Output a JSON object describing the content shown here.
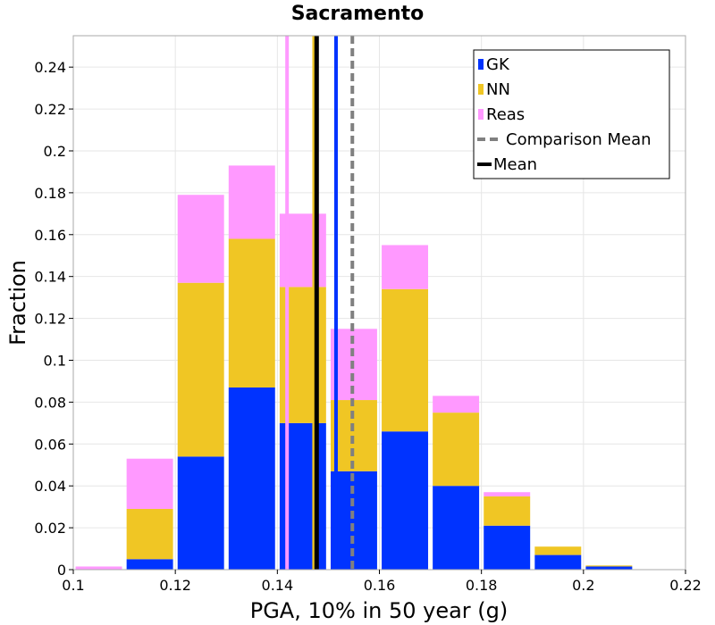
{
  "chart_data": {
    "type": "bar",
    "stacked": true,
    "title": "Sacramento",
    "xlabel": "PGA, 10% in 50 year (g)",
    "ylabel": "Fraction",
    "xlim": [
      0.1,
      0.22
    ],
    "ylim": [
      0,
      0.255
    ],
    "grid": true,
    "legend_position": "top-right",
    "x_ticks": [
      "0.1",
      "0.12",
      "0.14",
      "0.16",
      "0.18",
      "0.2",
      "0.22"
    ],
    "x_tick_values": [
      0.1,
      0.12,
      0.14,
      0.16,
      0.18,
      0.2,
      0.22
    ],
    "y_ticks": [
      "0",
      "0.02",
      "0.04",
      "0.06",
      "0.08",
      "0.1",
      "0.12",
      "0.14",
      "0.16",
      "0.18",
      "0.2",
      "0.22",
      "0.24"
    ],
    "y_tick_values": [
      0,
      0.02,
      0.04,
      0.06,
      0.08,
      0.1,
      0.12,
      0.14,
      0.16,
      0.18,
      0.2,
      0.22,
      0.24
    ],
    "bin_width": 0.01,
    "bin_starts": [
      0.1,
      0.11,
      0.12,
      0.13,
      0.14,
      0.15,
      0.16,
      0.17,
      0.18,
      0.19,
      0.2,
      0.21
    ],
    "series": [
      {
        "name": "GK",
        "color": "#0033ff",
        "values": [
          0.0,
          0.005,
          0.054,
          0.087,
          0.07,
          0.047,
          0.066,
          0.04,
          0.021,
          0.007,
          0.0015,
          0.0
        ]
      },
      {
        "name": "NN",
        "color": "#f0c624",
        "values": [
          0.0,
          0.024,
          0.083,
          0.071,
          0.065,
          0.034,
          0.068,
          0.035,
          0.014,
          0.004,
          0.0005,
          0.0
        ]
      },
      {
        "name": "Reas",
        "color": "#ff99ff",
        "values": [
          0.0015,
          0.024,
          0.042,
          0.035,
          0.035,
          0.034,
          0.021,
          0.008,
          0.002,
          0.0,
          0.0,
          0.0
        ]
      }
    ],
    "mean_lines": [
      {
        "series": "GK",
        "x": 0.1515,
        "color": "#0033ff",
        "style": "solid"
      },
      {
        "series": "NN",
        "x": 0.1472,
        "color": "#f0c624",
        "style": "solid"
      },
      {
        "series": "Reas",
        "x": 0.1419,
        "color": "#ff99ff",
        "style": "solid"
      },
      {
        "series": "Mean",
        "x": 0.1477,
        "color": "#000000",
        "style": "solid"
      },
      {
        "series": "Comparison Mean",
        "x": 0.1547,
        "color": "#808080",
        "style": "dashed"
      }
    ],
    "legend": [
      {
        "label": "GK",
        "color": "#0033ff",
        "kind": "patch"
      },
      {
        "label": "NN",
        "color": "#f0c624",
        "kind": "patch"
      },
      {
        "label": "Reas",
        "color": "#ff99ff",
        "kind": "patch"
      },
      {
        "label": "Comparison Mean",
        "color": "#808080",
        "kind": "dashed-line"
      },
      {
        "label": "Mean",
        "color": "#000000",
        "kind": "solid-line"
      }
    ]
  }
}
